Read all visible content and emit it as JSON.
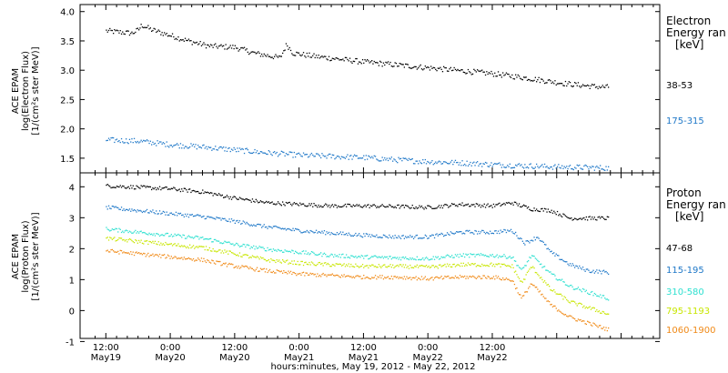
{
  "chart_data": [
    {
      "type": "scatter",
      "panel": "electron",
      "ylabel_lines": [
        "ACE EPAM",
        "log(Electron Flux)",
        "[1/(cm²s ster MeV)]"
      ],
      "ylim": [
        1.25,
        4.12
      ],
      "yticks": [
        "4.0",
        "3.5",
        "3.0",
        "2.5",
        "2.0",
        "1.5"
      ],
      "legend_title": [
        "Electron",
        "Energy ran",
        "[keV]"
      ],
      "series": [
        {
          "name": "38-53",
          "color": "#000000",
          "points": [
            [
              0,
              3.68
            ],
            [
              0.2,
              3.66
            ],
            [
              0.4,
              3.64
            ],
            [
              0.5,
              3.7
            ],
            [
              0.55,
              3.78
            ],
            [
              0.7,
              3.7
            ],
            [
              1.0,
              3.6
            ],
            [
              1.3,
              3.5
            ],
            [
              1.6,
              3.42
            ],
            [
              2.0,
              3.4
            ],
            [
              2.3,
              3.3
            ],
            [
              2.7,
              3.22
            ],
            [
              2.8,
              3.45
            ],
            [
              2.9,
              3.3
            ],
            [
              3.2,
              3.25
            ],
            [
              3.6,
              3.2
            ],
            [
              4.0,
              3.15
            ],
            [
              4.5,
              3.1
            ],
            [
              5.0,
              3.05
            ],
            [
              5.5,
              3.0
            ],
            [
              6.0,
              2.95
            ],
            [
              6.5,
              2.88
            ],
            [
              7.0,
              2.8
            ],
            [
              7.3,
              2.76
            ],
            [
              7.6,
              2.73
            ],
            [
              7.8,
              2.72
            ]
          ]
        },
        {
          "name": "175-315",
          "color": "#1f78c8",
          "points": [
            [
              0,
              1.82
            ],
            [
              0.5,
              1.8
            ],
            [
              1.0,
              1.74
            ],
            [
              1.5,
              1.7
            ],
            [
              2.0,
              1.65
            ],
            [
              2.5,
              1.6
            ],
            [
              3.0,
              1.56
            ],
            [
              3.5,
              1.54
            ],
            [
              4.0,
              1.52
            ],
            [
              4.5,
              1.48
            ],
            [
              5.0,
              1.45
            ],
            [
              5.5,
              1.43
            ],
            [
              6.0,
              1.4
            ],
            [
              6.5,
              1.38
            ],
            [
              7.0,
              1.36
            ],
            [
              7.5,
              1.35
            ],
            [
              7.8,
              1.34
            ]
          ]
        }
      ]
    },
    {
      "type": "scatter",
      "panel": "proton",
      "ylabel_lines": [
        "ACE EPAM",
        "log(Proton Flux)",
        "[1/(cm²s ster MeV)]"
      ],
      "ylim": [
        -0.9,
        4.45
      ],
      "yticks": [
        "4",
        "3",
        "2",
        "1",
        "0",
        "-1"
      ],
      "legend_title": [
        "Proton",
        "Energy ran",
        "[keV]"
      ],
      "series": [
        {
          "name": "47-68",
          "color": "#000000",
          "points": [
            [
              0,
              4.05
            ],
            [
              0.5,
              4.0
            ],
            [
              1.0,
              3.95
            ],
            [
              1.5,
              3.85
            ],
            [
              2.0,
              3.65
            ],
            [
              2.5,
              3.5
            ],
            [
              3.0,
              3.45
            ],
            [
              3.5,
              3.4
            ],
            [
              4.0,
              3.4
            ],
            [
              4.5,
              3.38
            ],
            [
              5.0,
              3.35
            ],
            [
              5.5,
              3.45
            ],
            [
              6.0,
              3.4
            ],
            [
              6.3,
              3.5
            ],
            [
              6.6,
              3.3
            ],
            [
              6.9,
              3.25
            ],
            [
              7.2,
              3.0
            ],
            [
              7.5,
              3.0
            ],
            [
              7.8,
              3.0
            ]
          ]
        },
        {
          "name": "115-195",
          "color": "#1f78c8",
          "points": [
            [
              0,
              3.35
            ],
            [
              0.5,
              3.25
            ],
            [
              1.0,
              3.15
            ],
            [
              1.5,
              3.05
            ],
            [
              2.0,
              2.9
            ],
            [
              2.5,
              2.72
            ],
            [
              3.0,
              2.6
            ],
            [
              3.5,
              2.52
            ],
            [
              4.0,
              2.45
            ],
            [
              4.5,
              2.4
            ],
            [
              5.0,
              2.4
            ],
            [
              5.5,
              2.55
            ],
            [
              6.0,
              2.55
            ],
            [
              6.3,
              2.6
            ],
            [
              6.5,
              2.2
            ],
            [
              6.7,
              2.4
            ],
            [
              6.9,
              1.9
            ],
            [
              7.2,
              1.5
            ],
            [
              7.5,
              1.3
            ],
            [
              7.8,
              1.25
            ]
          ]
        },
        {
          "name": "310-580",
          "color": "#2ee0d0",
          "points": [
            [
              0,
              2.65
            ],
            [
              0.5,
              2.55
            ],
            [
              1.0,
              2.45
            ],
            [
              1.5,
              2.35
            ],
            [
              2.0,
              2.15
            ],
            [
              2.5,
              2.0
            ],
            [
              3.0,
              1.9
            ],
            [
              3.5,
              1.8
            ],
            [
              4.0,
              1.75
            ],
            [
              4.5,
              1.72
            ],
            [
              5.0,
              1.7
            ],
            [
              5.5,
              1.8
            ],
            [
              6.0,
              1.8
            ],
            [
              6.3,
              1.75
            ],
            [
              6.45,
              1.3
            ],
            [
              6.6,
              1.8
            ],
            [
              6.9,
              1.2
            ],
            [
              7.2,
              0.8
            ],
            [
              7.5,
              0.6
            ],
            [
              7.8,
              0.4
            ]
          ]
        },
        {
          "name": "795-1193",
          "color": "#c8e600",
          "points": [
            [
              0,
              2.35
            ],
            [
              0.5,
              2.25
            ],
            [
              1.0,
              2.15
            ],
            [
              1.5,
              2.05
            ],
            [
              2.0,
              1.85
            ],
            [
              2.5,
              1.65
            ],
            [
              3.0,
              1.55
            ],
            [
              3.5,
              1.5
            ],
            [
              4.0,
              1.45
            ],
            [
              4.5,
              1.45
            ],
            [
              5.0,
              1.42
            ],
            [
              5.5,
              1.5
            ],
            [
              6.0,
              1.5
            ],
            [
              6.3,
              1.45
            ],
            [
              6.45,
              0.9
            ],
            [
              6.6,
              1.45
            ],
            [
              6.9,
              0.7
            ],
            [
              7.2,
              0.3
            ],
            [
              7.5,
              0.1
            ],
            [
              7.8,
              -0.1
            ]
          ]
        },
        {
          "name": "1060-1900",
          "color": "#f08a18",
          "points": [
            [
              0,
              1.95
            ],
            [
              0.5,
              1.85
            ],
            [
              1.0,
              1.75
            ],
            [
              1.5,
              1.65
            ],
            [
              2.0,
              1.45
            ],
            [
              2.5,
              1.3
            ],
            [
              3.0,
              1.2
            ],
            [
              3.5,
              1.15
            ],
            [
              4.0,
              1.1
            ],
            [
              4.5,
              1.1
            ],
            [
              5.0,
              1.05
            ],
            [
              5.5,
              1.1
            ],
            [
              6.0,
              1.1
            ],
            [
              6.3,
              1.0
            ],
            [
              6.45,
              0.4
            ],
            [
              6.6,
              0.9
            ],
            [
              6.9,
              0.2
            ],
            [
              7.2,
              -0.2
            ],
            [
              7.5,
              -0.4
            ],
            [
              7.8,
              -0.6
            ]
          ]
        }
      ]
    }
  ],
  "x_axis": {
    "ticks": [
      {
        "time": "12:00",
        "date": "May19"
      },
      {
        "time": "0:00",
        "date": "May20"
      },
      {
        "time": "12:00",
        "date": "May20"
      },
      {
        "time": "0:00",
        "date": "May21"
      },
      {
        "time": "12:00",
        "date": "May21"
      },
      {
        "time": "0:00",
        "date": "May22"
      },
      {
        "time": "12:00",
        "date": "May22"
      }
    ],
    "xlabel": "hours:minutes, May 19, 2012 - May 22, 2012"
  }
}
